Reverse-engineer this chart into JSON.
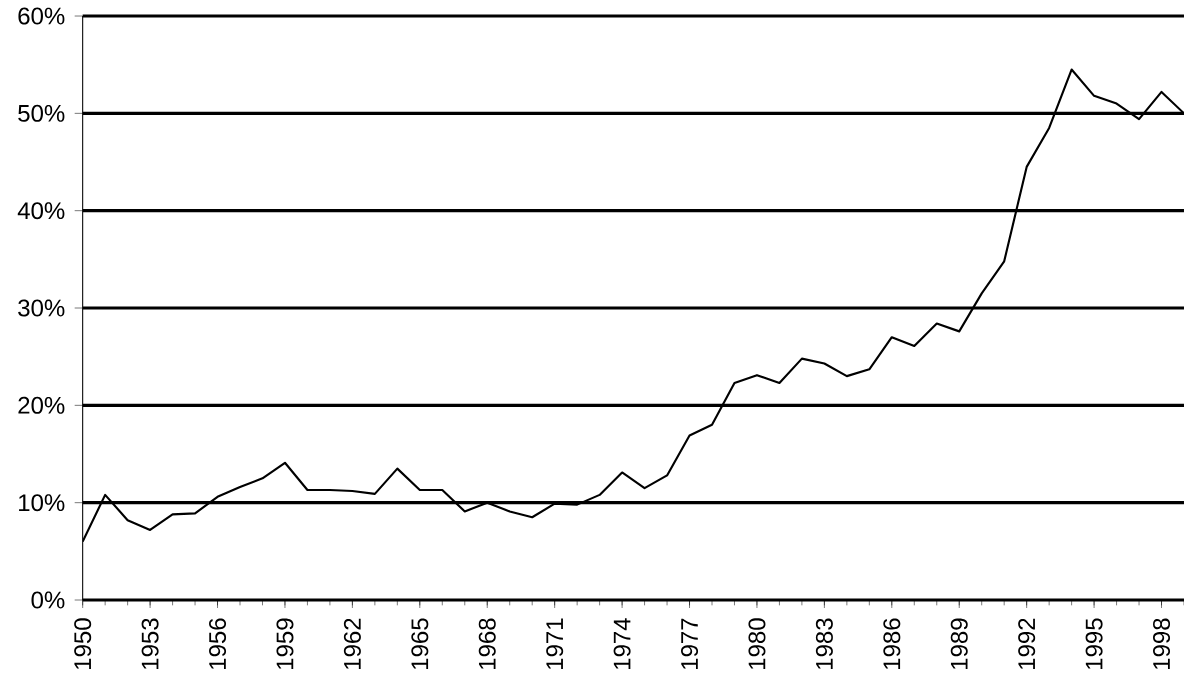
{
  "chart_data": {
    "type": "line",
    "x": [
      1950,
      1951,
      1952,
      1953,
      1954,
      1955,
      1956,
      1957,
      1958,
      1959,
      1960,
      1961,
      1962,
      1963,
      1964,
      1965,
      1966,
      1967,
      1968,
      1969,
      1970,
      1971,
      1972,
      1973,
      1974,
      1975,
      1976,
      1977,
      1978,
      1979,
      1980,
      1981,
      1982,
      1983,
      1984,
      1985,
      1986,
      1987,
      1988,
      1989,
      1990,
      1991,
      1992,
      1993,
      1994,
      1995,
      1996,
      1997,
      1998,
      1999
    ],
    "values": [
      6.0,
      10.8,
      8.2,
      7.2,
      8.8,
      8.9,
      10.6,
      11.6,
      12.5,
      14.1,
      11.3,
      11.3,
      11.2,
      10.9,
      13.5,
      11.3,
      11.3,
      9.1,
      10.0,
      9.1,
      8.5,
      9.9,
      9.8,
      10.8,
      13.1,
      11.5,
      12.8,
      16.9,
      18.0,
      22.3,
      23.1,
      22.3,
      24.8,
      24.3,
      23.0,
      23.7,
      27.0,
      26.1,
      28.4,
      27.6,
      31.5,
      34.8,
      44.5,
      48.5,
      54.5,
      51.8,
      51.0,
      49.4,
      52.2,
      50.0
    ],
    "color": "#000000",
    "xlim": [
      1950,
      1999
    ],
    "xticks": [
      1950,
      1953,
      1956,
      1959,
      1962,
      1965,
      1968,
      1971,
      1974,
      1977,
      1980,
      1983,
      1986,
      1989,
      1992,
      1995,
      1998
    ],
    "ylim": [
      0,
      60
    ],
    "yticks": [
      {
        "value": 0,
        "label": "0%"
      },
      {
        "value": 10,
        "label": "10%"
      },
      {
        "value": 20,
        "label": "20%"
      },
      {
        "value": 30,
        "label": "30%"
      },
      {
        "value": 40,
        "label": "40%"
      },
      {
        "value": 50,
        "label": "50%"
      },
      {
        "value": 60,
        "label": "60%"
      }
    ],
    "grid": "y",
    "marker": "none",
    "line_style": "solid"
  }
}
